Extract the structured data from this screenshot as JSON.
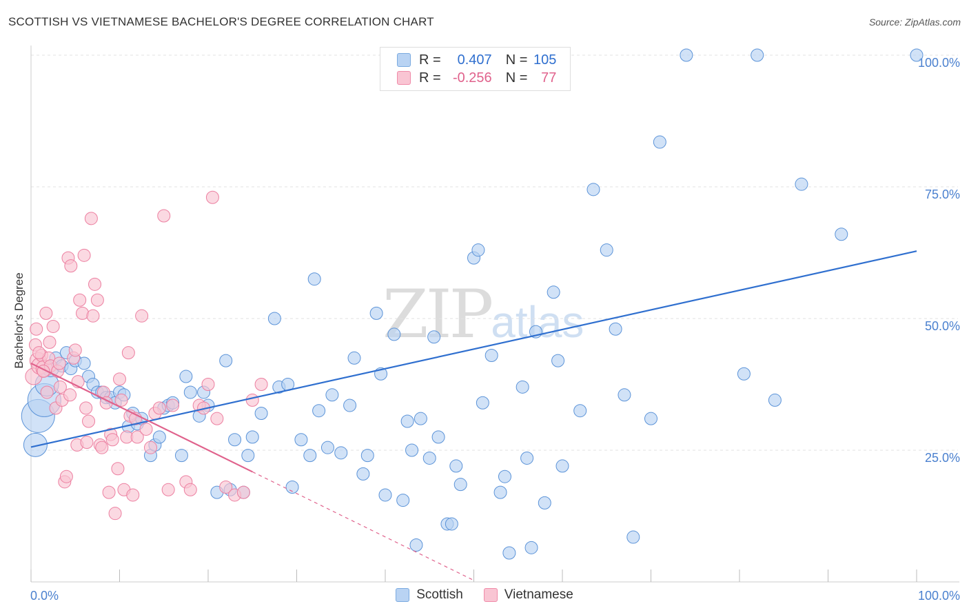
{
  "title": "SCOTTISH VS VIETNAMESE BACHELOR'S DEGREE CORRELATION CHART",
  "source": "Source: ZipAtlas.com",
  "watermark": {
    "zip": "ZIP",
    "atlas": "atlas"
  },
  "legend": {
    "r_label": "R =",
    "n_label": "N =",
    "rows": [
      {
        "name": "Scottish",
        "r": "0.407",
        "n": "105",
        "color": "#7aaae0",
        "fill": "#b9d3f3"
      },
      {
        "name": "Vietnamese",
        "r": "-0.256",
        "n": "77",
        "color": "#f08aa8",
        "fill": "#f9c5d3"
      }
    ]
  },
  "chart_data": {
    "type": "scatter",
    "title": "SCOTTISH VS VIETNAMESE BACHELOR'S DEGREE CORRELATION CHART",
    "xlabel": "",
    "ylabel": "Bachelor's Degree",
    "xlim": [
      0,
      100
    ],
    "ylim": [
      0,
      100
    ],
    "x_tick_labels": [
      "0.0%",
      "100.0%"
    ],
    "y_tick_labels": [
      "25.0%",
      "50.0%",
      "75.0%",
      "100.0%"
    ],
    "y_ticks": [
      25,
      50,
      75,
      100
    ],
    "grid": true,
    "legend_position": "bottom",
    "series": [
      {
        "name": "Scottish",
        "color": "#5b93d8",
        "line_color": "#2f6fcf",
        "trend": {
          "x": [
            0,
            100
          ],
          "y": [
            25.6,
            62.8
          ],
          "dashed_from": null
        },
        "points": [
          [
            0.5,
            26.0,
            3
          ],
          [
            0.8,
            31.5,
            4
          ],
          [
            1.5,
            34.5,
            4
          ],
          [
            1.8,
            37.5,
            3
          ],
          [
            2.2,
            40.5,
            2
          ],
          [
            2.8,
            42.5,
            1
          ],
          [
            3.5,
            41.0,
            1
          ],
          [
            4.0,
            43.5,
            1
          ],
          [
            4.5,
            40.5,
            1
          ],
          [
            5.0,
            42.0,
            1
          ],
          [
            6.0,
            41.5,
            1
          ],
          [
            6.5,
            39.0,
            1
          ],
          [
            7.0,
            37.5,
            1
          ],
          [
            7.5,
            36.0,
            1
          ],
          [
            8.0,
            36.0,
            1
          ],
          [
            8.5,
            35.0,
            1
          ],
          [
            9.0,
            35.0,
            1
          ],
          [
            9.5,
            34.0,
            1
          ],
          [
            10.0,
            36.0,
            1
          ],
          [
            10.5,
            35.5,
            1
          ],
          [
            11.0,
            29.5,
            1
          ],
          [
            11.5,
            32.0,
            1
          ],
          [
            12.0,
            30.0,
            1
          ],
          [
            12.5,
            31.0,
            1
          ],
          [
            13.5,
            24.0,
            1
          ],
          [
            14.0,
            26.0,
            1
          ],
          [
            14.5,
            27.5,
            1
          ],
          [
            15.0,
            33.0,
            1
          ],
          [
            15.5,
            33.5,
            1
          ],
          [
            16.0,
            34.0,
            1
          ],
          [
            17.0,
            24.0,
            1
          ],
          [
            17.5,
            39.0,
            1
          ],
          [
            18.0,
            36.0,
            1
          ],
          [
            19.0,
            31.5,
            1
          ],
          [
            19.5,
            36.0,
            1
          ],
          [
            20.0,
            33.5,
            1
          ],
          [
            21.0,
            17.0,
            1
          ],
          [
            22.0,
            42.0,
            1
          ],
          [
            22.5,
            17.5,
            1
          ],
          [
            23.0,
            27.0,
            1
          ],
          [
            24.0,
            17.0,
            1
          ],
          [
            24.5,
            24.0,
            1
          ],
          [
            25.0,
            27.5,
            1
          ],
          [
            26.0,
            32.0,
            1
          ],
          [
            27.5,
            50.0,
            1
          ],
          [
            28.0,
            37.0,
            1
          ],
          [
            29.0,
            37.5,
            1
          ],
          [
            29.5,
            18.0,
            1
          ],
          [
            30.5,
            27.0,
            1
          ],
          [
            31.5,
            24.0,
            1
          ],
          [
            32.0,
            57.5,
            1
          ],
          [
            32.5,
            32.5,
            1
          ],
          [
            33.5,
            25.5,
            1
          ],
          [
            34.0,
            35.5,
            1
          ],
          [
            35.0,
            24.5,
            1
          ],
          [
            36.0,
            33.5,
            1
          ],
          [
            36.5,
            42.5,
            1
          ],
          [
            37.5,
            20.5,
            1
          ],
          [
            38.0,
            24.0,
            1
          ],
          [
            39.0,
            51.0,
            1
          ],
          [
            39.5,
            39.5,
            1
          ],
          [
            40.0,
            16.5,
            1
          ],
          [
            41.0,
            47.0,
            1
          ],
          [
            42.0,
            15.5,
            1
          ],
          [
            42.5,
            30.5,
            1
          ],
          [
            43.0,
            25.0,
            1
          ],
          [
            43.5,
            7.0,
            1
          ],
          [
            44.0,
            31.0,
            1
          ],
          [
            45.0,
            23.5,
            1
          ],
          [
            45.5,
            46.5,
            1
          ],
          [
            46.0,
            27.5,
            1
          ],
          [
            47.0,
            11.0,
            1
          ],
          [
            47.5,
            11.0,
            1
          ],
          [
            48.0,
            22.0,
            1
          ],
          [
            48.5,
            18.5,
            1
          ],
          [
            50.0,
            61.5,
            1
          ],
          [
            50.5,
            63.0,
            1
          ],
          [
            51.0,
            34.0,
            1
          ],
          [
            52.0,
            43.0,
            1
          ],
          [
            53.0,
            17.0,
            1
          ],
          [
            53.5,
            20.0,
            1
          ],
          [
            54.0,
            5.5,
            1
          ],
          [
            55.5,
            37.0,
            1
          ],
          [
            56.5,
            6.5,
            1
          ],
          [
            56.0,
            23.5,
            1
          ],
          [
            57.0,
            47.5,
            1
          ],
          [
            58.0,
            15.0,
            1
          ],
          [
            59.0,
            55.0,
            1
          ],
          [
            59.5,
            42.0,
            1
          ],
          [
            60.0,
            22.0,
            1
          ],
          [
            62.0,
            32.5,
            1
          ],
          [
            63.5,
            74.5,
            1
          ],
          [
            65.0,
            63.0,
            1
          ],
          [
            66.0,
            48.0,
            1
          ],
          [
            67.0,
            35.5,
            1
          ],
          [
            68.0,
            8.5,
            1
          ],
          [
            70.0,
            31.0,
            1
          ],
          [
            71.0,
            83.5,
            1
          ],
          [
            74.0,
            100.0,
            1
          ],
          [
            82.0,
            100.0,
            1
          ],
          [
            80.5,
            39.5,
            1
          ],
          [
            84.0,
            34.5,
            1
          ],
          [
            87.0,
            75.5,
            1
          ],
          [
            91.5,
            66.0,
            1
          ],
          [
            100.0,
            100.0,
            1
          ]
        ]
      },
      {
        "name": "Vietnamese",
        "color": "#ec7fa0",
        "line_color": "#e0628c",
        "trend": {
          "x": [
            0,
            50
          ],
          "y": [
            41.5,
            0.3
          ],
          "dashed_from": 25
        },
        "points": [
          [
            0.3,
            39.0,
            2
          ],
          [
            0.5,
            45.0,
            1
          ],
          [
            0.6,
            48.0,
            1
          ],
          [
            0.8,
            42.0,
            2
          ],
          [
            1.0,
            41.0,
            2
          ],
          [
            1.2,
            43.0,
            1
          ],
          [
            1.5,
            40.5,
            2
          ],
          [
            1.7,
            51.0,
            1
          ],
          [
            1.8,
            36.0,
            1
          ],
          [
            2.0,
            42.5,
            1
          ],
          [
            2.2,
            41.0,
            1
          ],
          [
            2.5,
            48.5,
            1
          ],
          [
            2.8,
            33.0,
            1
          ],
          [
            3.0,
            40.0,
            1
          ],
          [
            3.2,
            41.5,
            1
          ],
          [
            3.5,
            34.5,
            1
          ],
          [
            3.8,
            19.0,
            1
          ],
          [
            4.0,
            20.0,
            1
          ],
          [
            4.2,
            61.5,
            1
          ],
          [
            4.5,
            60.0,
            1
          ],
          [
            4.8,
            42.5,
            1
          ],
          [
            5.0,
            44.0,
            1
          ],
          [
            5.2,
            26.0,
            1
          ],
          [
            5.5,
            53.5,
            1
          ],
          [
            5.8,
            51.0,
            1
          ],
          [
            6.0,
            62.0,
            1
          ],
          [
            6.2,
            33.0,
            1
          ],
          [
            6.5,
            30.5,
            1
          ],
          [
            6.8,
            69.0,
            1
          ],
          [
            7.0,
            50.5,
            1
          ],
          [
            7.2,
            56.5,
            1
          ],
          [
            7.5,
            53.5,
            1
          ],
          [
            7.8,
            26.0,
            1
          ],
          [
            8.0,
            25.5,
            1
          ],
          [
            8.2,
            36.0,
            1
          ],
          [
            8.5,
            34.0,
            1
          ],
          [
            8.8,
            17.0,
            1
          ],
          [
            9.0,
            28.0,
            1
          ],
          [
            9.2,
            27.0,
            1
          ],
          [
            9.5,
            13.0,
            1
          ],
          [
            9.8,
            21.5,
            1
          ],
          [
            10.0,
            38.5,
            1
          ],
          [
            10.2,
            34.5,
            1
          ],
          [
            10.5,
            17.5,
            1
          ],
          [
            10.8,
            27.5,
            1
          ],
          [
            11.0,
            43.5,
            1
          ],
          [
            11.2,
            31.5,
            1
          ],
          [
            11.5,
            16.5,
            1
          ],
          [
            11.8,
            31.0,
            1
          ],
          [
            12.0,
            27.5,
            1
          ],
          [
            12.5,
            50.5,
            1
          ],
          [
            13.0,
            29.0,
            1
          ],
          [
            13.5,
            25.5,
            1
          ],
          [
            14.0,
            32.0,
            1
          ],
          [
            14.5,
            33.0,
            1
          ],
          [
            15.0,
            69.5,
            1
          ],
          [
            15.5,
            17.5,
            1
          ],
          [
            16.0,
            33.5,
            1
          ],
          [
            17.5,
            19.0,
            1
          ],
          [
            18.0,
            17.5,
            1
          ],
          [
            19.0,
            33.5,
            1
          ],
          [
            19.5,
            33.0,
            1
          ],
          [
            20.0,
            37.5,
            1
          ],
          [
            20.5,
            73.0,
            1
          ],
          [
            21.0,
            31.0,
            1
          ],
          [
            22.0,
            18.0,
            1
          ],
          [
            23.0,
            16.5,
            1
          ],
          [
            24.0,
            17.0,
            1
          ],
          [
            25.0,
            34.5,
            1
          ],
          [
            26.0,
            37.5,
            1
          ],
          [
            3.3,
            37.0,
            1
          ],
          [
            2.1,
            45.5,
            1
          ],
          [
            1.4,
            40.0,
            1
          ],
          [
            0.9,
            43.5,
            1
          ],
          [
            6.3,
            26.5,
            1
          ],
          [
            5.3,
            38.0,
            1
          ],
          [
            4.4,
            35.5,
            1
          ]
        ]
      }
    ]
  }
}
